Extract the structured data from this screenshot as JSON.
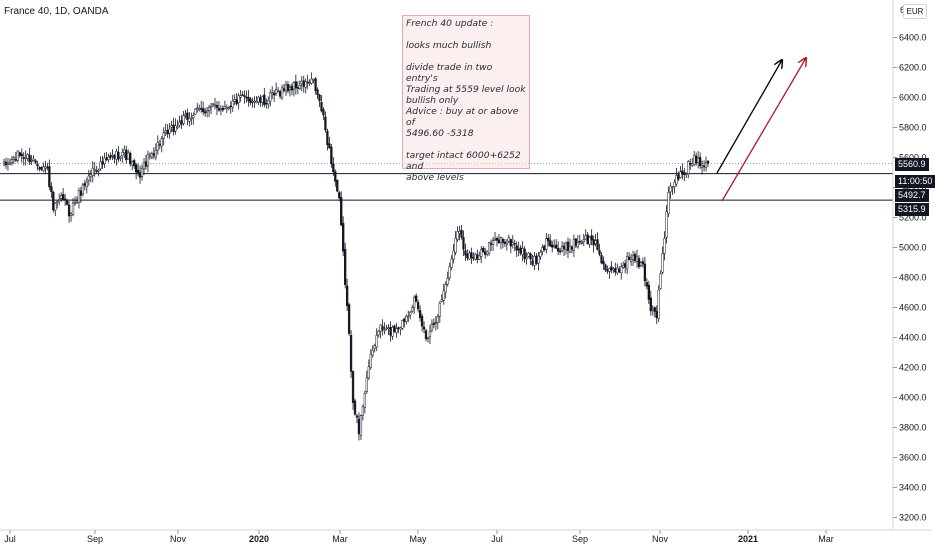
{
  "header": {
    "symbol": "France 40, 1D, OANDA",
    "currency": "EUR",
    "top_partial_label": "6"
  },
  "note": {
    "text": "French 40 update :\n\nlooks much bullish\n\ndivide trade in two  entry's\n Trading at 5559 level look\nbullish only\nAdvice : buy at or above of\n5496.60 -5318\n\ntarget intact 6000+6252 and\nabove levels"
  },
  "price_tags": {
    "last": "5560.9",
    "countdown": "11:00:50",
    "upper_level": "5492.7",
    "lower_level": "5315.9"
  },
  "colors": {
    "candle": "#131722",
    "level_line": "#131722",
    "arrow_black": "#000000",
    "arrow_red": "#b2182b"
  },
  "chart_data": {
    "type": "candlestick",
    "title": "France 40, 1D, OANDA",
    "y_axis": {
      "range": [
        3150,
        6650
      ],
      "ticks": [
        3200,
        3400,
        3600,
        3800,
        4000,
        4200,
        4400,
        4600,
        4800,
        5000,
        5200,
        5400,
        5600,
        5800,
        6000,
        6200,
        6400
      ],
      "tick_labels": [
        "3200.0",
        "3400.0",
        "3600.0",
        "3800.0",
        "4000.0",
        "4200.0",
        "4400.0",
        "4600.0",
        "4800.0",
        "5000.0",
        "5200.0",
        "5400.0",
        "5600.0",
        "5800.0",
        "6000.0",
        "6200.0",
        "6400.0"
      ],
      "currency": "EUR"
    },
    "x_axis": {
      "tick_labels": [
        "Jul",
        "Sep",
        "Nov",
        "2020",
        "Mar",
        "May",
        "Jul",
        "Sep",
        "Nov",
        "2021",
        "Mar"
      ]
    },
    "horizontal_levels": [
      5492.7,
      5315.9
    ],
    "last_price": 5560.9,
    "anchors": [
      {
        "i": 0,
        "v": 5540
      },
      {
        "i": 8,
        "v": 5620
      },
      {
        "i": 14,
        "v": 5590
      },
      {
        "i": 22,
        "v": 5520
      },
      {
        "i": 25,
        "v": 5250
      },
      {
        "i": 30,
        "v": 5330
      },
      {
        "i": 33,
        "v": 5230
      },
      {
        "i": 40,
        "v": 5400
      },
      {
        "i": 45,
        "v": 5520
      },
      {
        "i": 60,
        "v": 5640
      },
      {
        "i": 63,
        "v": 5600
      },
      {
        "i": 68,
        "v": 5470
      },
      {
        "i": 72,
        "v": 5570
      },
      {
        "i": 80,
        "v": 5720
      },
      {
        "i": 90,
        "v": 5840
      },
      {
        "i": 100,
        "v": 5920
      },
      {
        "i": 112,
        "v": 5940
      },
      {
        "i": 120,
        "v": 5990
      },
      {
        "i": 125,
        "v": 5990
      },
      {
        "i": 132,
        "v": 5970
      },
      {
        "i": 142,
        "v": 6060
      },
      {
        "i": 150,
        "v": 6080
      },
      {
        "i": 157,
        "v": 6100
      },
      {
        "i": 161,
        "v": 5920
      },
      {
        "i": 166,
        "v": 5580
      },
      {
        "i": 170,
        "v": 5300
      },
      {
        "i": 174,
        "v": 4600
      },
      {
        "i": 177,
        "v": 4000
      },
      {
        "i": 180,
        "v": 3760
      },
      {
        "i": 184,
        "v": 4150
      },
      {
        "i": 190,
        "v": 4460
      },
      {
        "i": 196,
        "v": 4440
      },
      {
        "i": 202,
        "v": 4500
      },
      {
        "i": 208,
        "v": 4650
      },
      {
        "i": 214,
        "v": 4400
      },
      {
        "i": 220,
        "v": 4560
      },
      {
        "i": 226,
        "v": 4860
      },
      {
        "i": 230,
        "v": 5140
      },
      {
        "i": 234,
        "v": 4970
      },
      {
        "i": 240,
        "v": 4920
      },
      {
        "i": 246,
        "v": 5020
      },
      {
        "i": 252,
        "v": 5050
      },
      {
        "i": 258,
        "v": 5030
      },
      {
        "i": 264,
        "v": 4950
      },
      {
        "i": 270,
        "v": 4900
      },
      {
        "i": 276,
        "v": 5060
      },
      {
        "i": 282,
        "v": 4970
      },
      {
        "i": 288,
        "v": 5020
      },
      {
        "i": 294,
        "v": 5060
      },
      {
        "i": 300,
        "v": 5030
      },
      {
        "i": 306,
        "v": 4820
      },
      {
        "i": 312,
        "v": 4860
      },
      {
        "i": 318,
        "v": 4940
      },
      {
        "i": 324,
        "v": 4870
      },
      {
        "i": 328,
        "v": 4600
      },
      {
        "i": 331,
        "v": 4560
      },
      {
        "i": 334,
        "v": 4950
      },
      {
        "i": 337,
        "v": 5350
      },
      {
        "i": 340,
        "v": 5450
      },
      {
        "i": 345,
        "v": 5500
      },
      {
        "i": 350,
        "v": 5600
      },
      {
        "i": 354,
        "v": 5570
      },
      {
        "i": 357,
        "v": 5560
      }
    ]
  }
}
